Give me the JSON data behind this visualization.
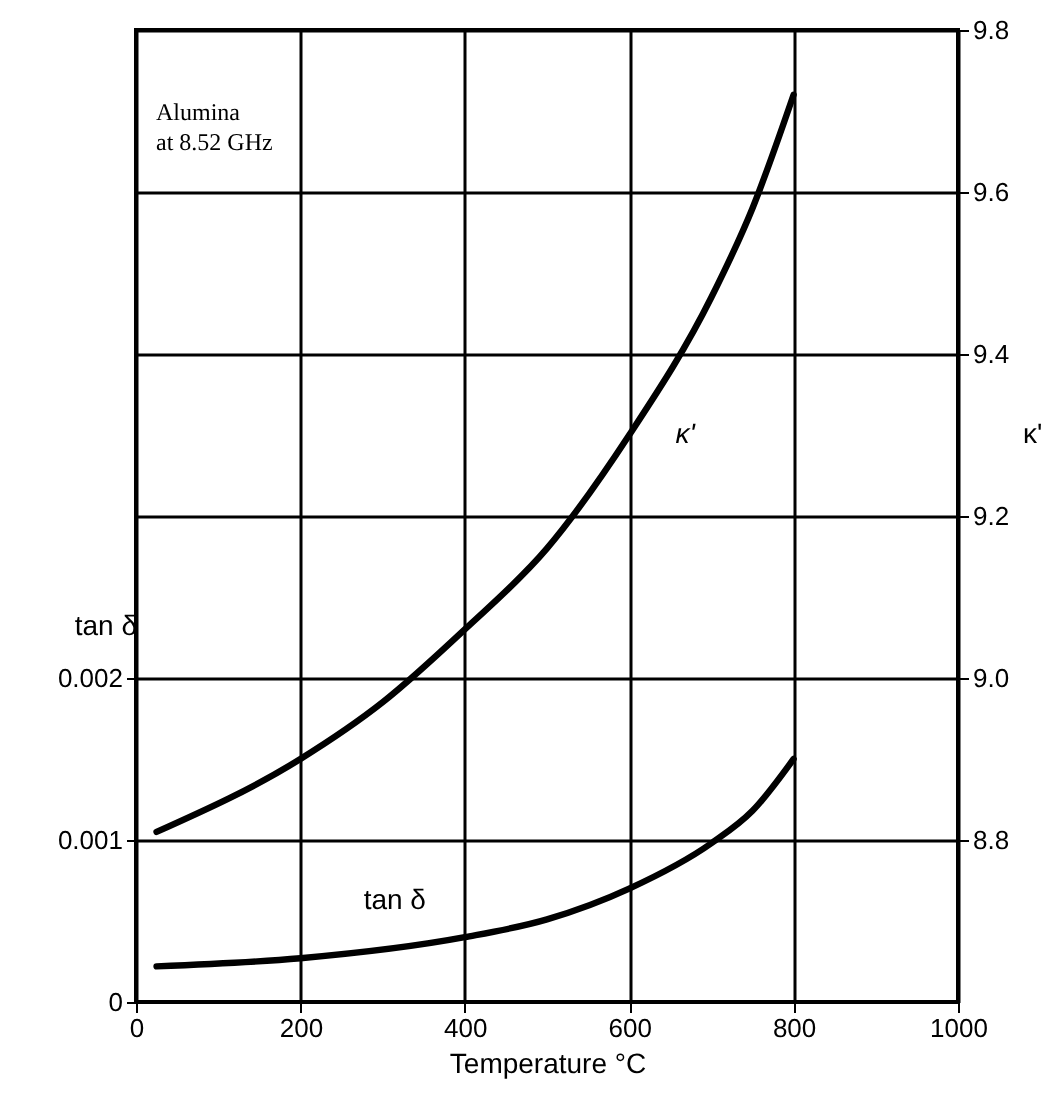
{
  "chart_data": {
    "type": "line",
    "xlabel": "Temperature °C",
    "ylabel": "tan δ",
    "y2label": "κ'",
    "annotations": [
      "Alumina",
      "at 8.52 GHz"
    ],
    "series": [
      {
        "name": "κ'",
        "color": "#000000",
        "axis": "y2",
        "x": [
          25,
          200,
          300,
          400,
          500,
          600,
          700,
          750,
          800
        ],
        "values": [
          8.81,
          8.9,
          8.97,
          9.06,
          9.16,
          9.3,
          9.47,
          9.58,
          9.72
        ]
      },
      {
        "name": "tan δ",
        "color": "#000000",
        "x": [
          25,
          200,
          400,
          500,
          600,
          700,
          750,
          800
        ],
        "values": [
          0.00022,
          0.00027,
          0.0004,
          0.00051,
          0.0007,
          0.00098,
          0.00118,
          0.0015
        ]
      }
    ],
    "xlim": [
      0,
      1000
    ],
    "xticks": [
      0,
      200,
      400,
      600,
      800,
      1000
    ],
    "ylim": [
      0,
      0.006
    ],
    "yticks": [
      0,
      0.001,
      0.002
    ],
    "y2lim": [
      8.6,
      9.8
    ],
    "y2ticks": [
      8.8,
      {
        "value": 9,
        "label": "9.0"
      },
      9.2,
      9.4,
      9.6,
      9.8
    ],
    "grid": true,
    "line_style": "solid",
    "marker": "none"
  }
}
